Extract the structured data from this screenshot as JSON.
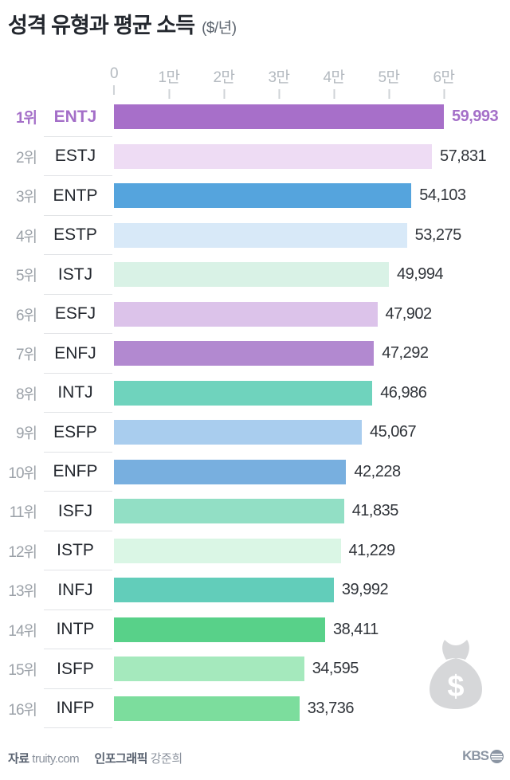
{
  "header": {
    "title": "성격 유형과 평균 소득",
    "subtitle": "($/년)"
  },
  "chart_data": {
    "type": "bar",
    "orientation": "horizontal",
    "title": "성격 유형과 평균 소득 ($/년)",
    "xlabel": "평균 소득 ($/년)",
    "xlim": [
      0,
      60000
    ],
    "grid": false,
    "x_ticks": [
      {
        "value": 0,
        "label": "0"
      },
      {
        "value": 10000,
        "label": "1만"
      },
      {
        "value": 20000,
        "label": "2만"
      },
      {
        "value": 30000,
        "label": "3만"
      },
      {
        "value": 40000,
        "label": "4만"
      },
      {
        "value": 50000,
        "label": "5만"
      },
      {
        "value": 60000,
        "label": "6만"
      }
    ],
    "rows": [
      {
        "rank": "1위",
        "type": "ENTJ",
        "value": 59993,
        "label": "59,993",
        "color": "#a76fc9",
        "highlight": true
      },
      {
        "rank": "2위",
        "type": "ESTJ",
        "value": 57831,
        "label": "57,831",
        "color": "#eedcf4",
        "highlight": false
      },
      {
        "rank": "3위",
        "type": "ENTP",
        "value": 54103,
        "label": "54,103",
        "color": "#55a4dd",
        "highlight": false
      },
      {
        "rank": "4위",
        "type": "ESTP",
        "value": 53275,
        "label": "53,275",
        "color": "#d8e9f8",
        "highlight": false
      },
      {
        "rank": "5위",
        "type": "ISTJ",
        "value": 49994,
        "label": "49,994",
        "color": "#d9f2e6",
        "highlight": false
      },
      {
        "rank": "6위",
        "type": "ESFJ",
        "value": 47902,
        "label": "47,902",
        "color": "#dcc3ea",
        "highlight": false
      },
      {
        "rank": "7위",
        "type": "ENFJ",
        "value": 47292,
        "label": "47,292",
        "color": "#b289d0",
        "highlight": false
      },
      {
        "rank": "8위",
        "type": "INTJ",
        "value": 46986,
        "label": "46,986",
        "color": "#6fd3bd",
        "highlight": false
      },
      {
        "rank": "9위",
        "type": "ESFP",
        "value": 45067,
        "label": "45,067",
        "color": "#a9cdee",
        "highlight": false
      },
      {
        "rank": "10위",
        "type": "ENFP",
        "value": 42228,
        "label": "42,228",
        "color": "#78afdf",
        "highlight": false
      },
      {
        "rank": "11위",
        "type": "ISFJ",
        "value": 41835,
        "label": "41,835",
        "color": "#92dfc5",
        "highlight": false
      },
      {
        "rank": "12위",
        "type": "ISTP",
        "value": 41229,
        "label": "41,229",
        "color": "#daf6e5",
        "highlight": false
      },
      {
        "rank": "13위",
        "type": "INFJ",
        "value": 39992,
        "label": "39,992",
        "color": "#62cdba",
        "highlight": false
      },
      {
        "rank": "14위",
        "type": "INTP",
        "value": 38411,
        "label": "38,411",
        "color": "#58d189",
        "highlight": false
      },
      {
        "rank": "15위",
        "type": "ISFP",
        "value": 34595,
        "label": "34,595",
        "color": "#a5e9bd",
        "highlight": false
      },
      {
        "rank": "16위",
        "type": "INFP",
        "value": 33736,
        "label": "33,736",
        "color": "#7cdd9d",
        "highlight": false
      }
    ],
    "accent_color": "#a46fc8"
  },
  "icons": {
    "money_bag": "money-bag-icon",
    "money_bag_symbol": "$",
    "money_bag_color": "#d6d7d9"
  },
  "footer": {
    "source_label": "자료",
    "source": "truity.com",
    "credit_label": "인포그래픽",
    "credit": "강준희",
    "logo_text": "KBS"
  }
}
